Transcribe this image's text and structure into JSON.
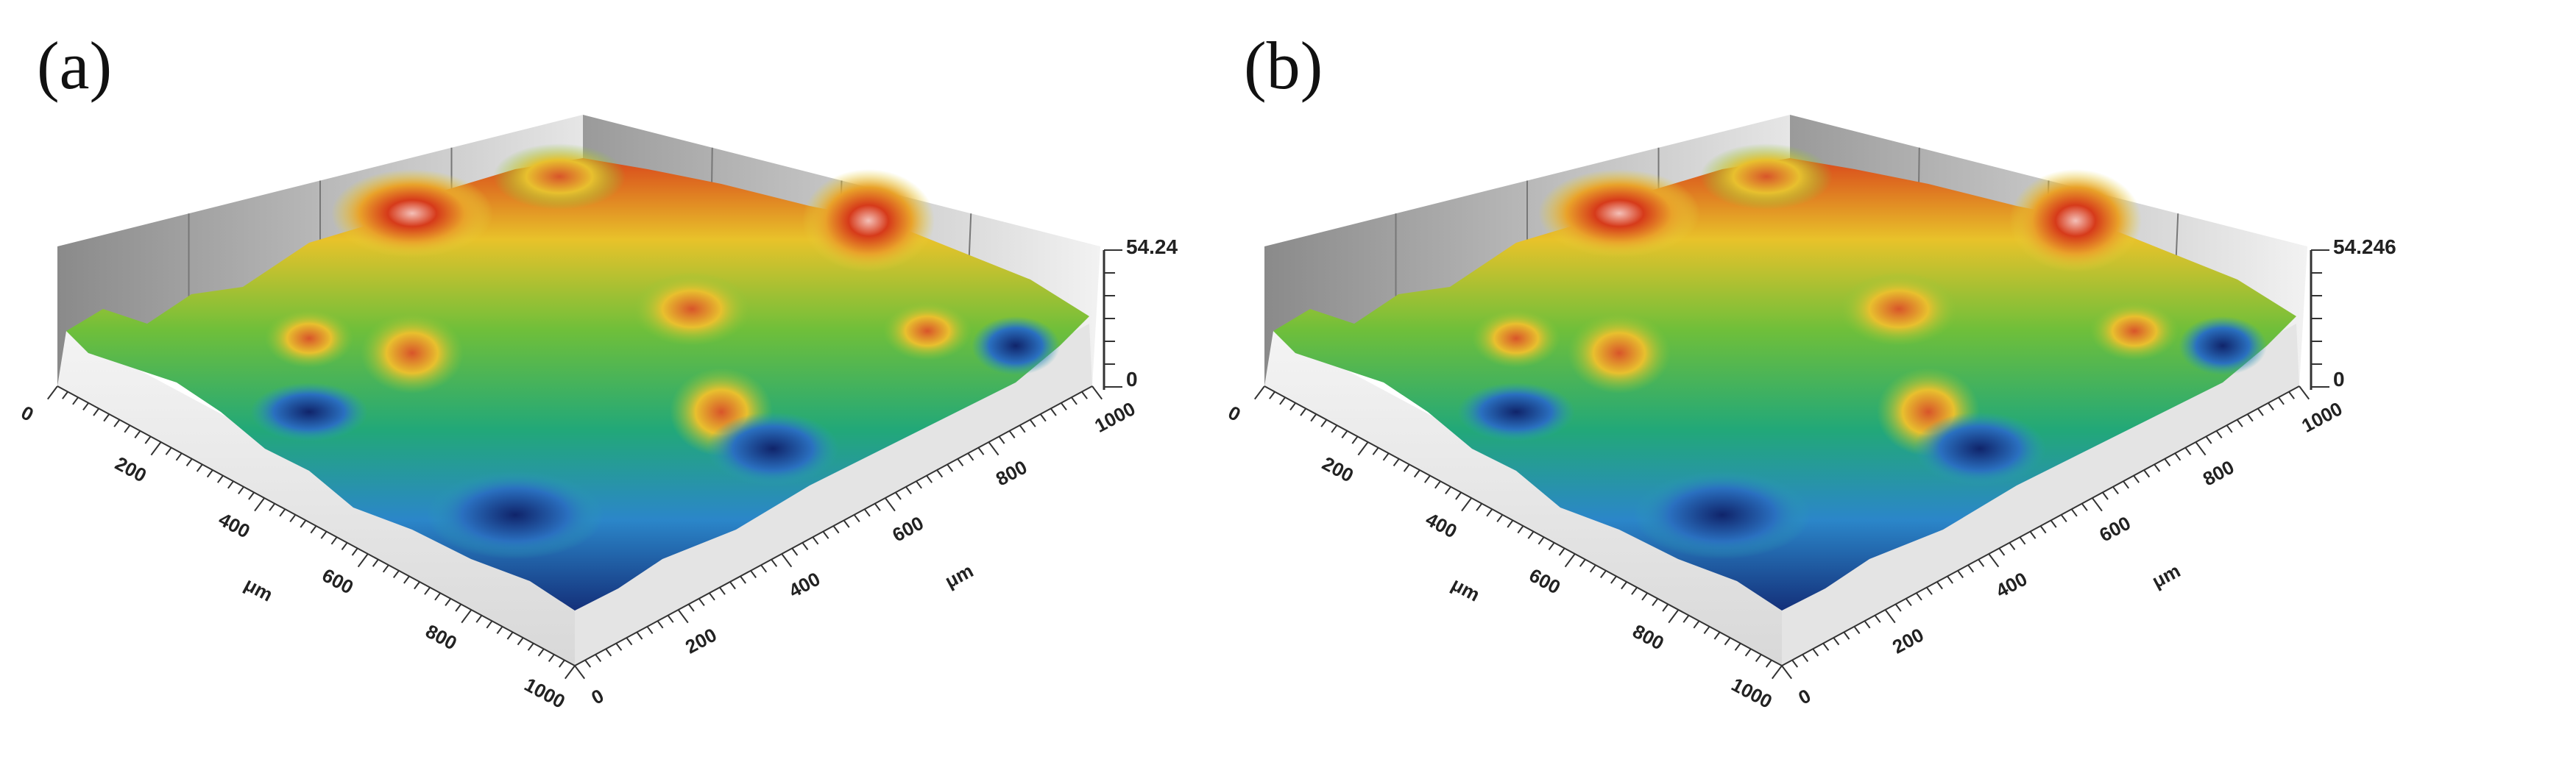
{
  "panels": [
    {
      "label": "(a)",
      "x_ticks": [
        "0",
        "200",
        "400",
        "600",
        "800",
        "1000"
      ],
      "x_unit": "μm",
      "y_ticks": [
        "0",
        "200",
        "400",
        "600",
        "800",
        "1000"
      ],
      "y_unit": "μm",
      "z_ticks": [
        "54.24",
        "0"
      ]
    },
    {
      "label": "(b)",
      "x_ticks": [
        "0",
        "200",
        "400",
        "600",
        "800",
        "1000"
      ],
      "x_unit": "μm",
      "y_ticks": [
        "0",
        "200",
        "400",
        "600",
        "800",
        "1000"
      ],
      "y_unit": "μm",
      "z_ticks": [
        "54.246",
        "0"
      ]
    }
  ]
}
